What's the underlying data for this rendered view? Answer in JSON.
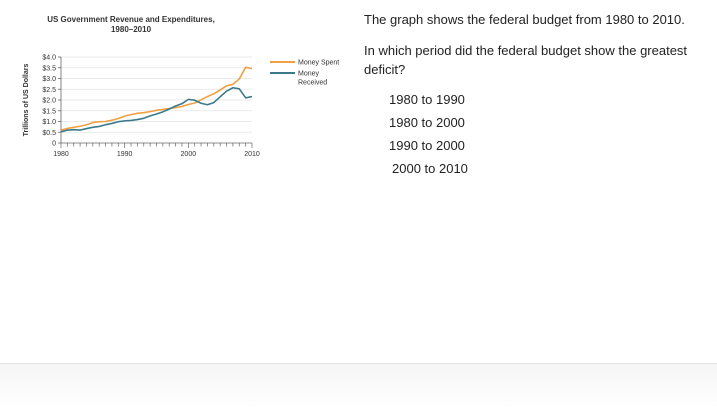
{
  "chart_data": {
    "type": "line",
    "title": "US Government Revenue and Expenditures,",
    "subtitle": "1980–2010",
    "ylabel": "Trillions of US Dollars",
    "xlabel": "",
    "xlim": [
      1980,
      2010
    ],
    "ylim": [
      0,
      4.0
    ],
    "x_ticks": [
      1980,
      1990,
      2000,
      2010
    ],
    "y_ticks": [
      "0",
      "$0.5",
      "$1.0",
      "$1.5",
      "$2.0",
      "$2.5",
      "$3.0",
      "$3.5",
      "$4.0"
    ],
    "y_tick_values": [
      0,
      0.5,
      1.0,
      1.5,
      2.0,
      2.5,
      3.0,
      3.5,
      4.0
    ],
    "grid": true,
    "legend": "right",
    "x": [
      1980,
      1981,
      1982,
      1983,
      1984,
      1985,
      1986,
      1987,
      1988,
      1989,
      1990,
      1991,
      1992,
      1993,
      1994,
      1995,
      1996,
      1997,
      1998,
      1999,
      2000,
      2001,
      2002,
      2003,
      2004,
      2005,
      2006,
      2007,
      2008,
      2009,
      2010
    ],
    "series": [
      {
        "name": "Money Spent",
        "color": "#f0a043",
        "values": [
          0.6,
          0.68,
          0.73,
          0.78,
          0.85,
          0.95,
          0.99,
          1.0,
          1.06,
          1.14,
          1.25,
          1.32,
          1.38,
          1.41,
          1.46,
          1.52,
          1.56,
          1.6,
          1.65,
          1.7,
          1.79,
          1.86,
          2.01,
          2.16,
          2.29,
          2.47,
          2.66,
          2.73,
          2.98,
          3.52,
          3.46
        ]
      },
      {
        "name": "Money Received",
        "color": "#3c7a8a",
        "values": [
          0.52,
          0.6,
          0.62,
          0.6,
          0.67,
          0.73,
          0.77,
          0.85,
          0.91,
          0.99,
          1.03,
          1.05,
          1.09,
          1.15,
          1.26,
          1.35,
          1.45,
          1.58,
          1.72,
          1.83,
          2.03,
          1.99,
          1.85,
          1.78,
          1.88,
          2.15,
          2.41,
          2.57,
          2.52,
          2.1,
          2.16
        ]
      }
    ]
  },
  "question": {
    "intro": "The graph shows the federal budget from 1980 to 2010.",
    "text": "In which period did the federal budget show the greatest deficit?",
    "options": [
      "1980 to 1990",
      "1980 to 2000",
      "1990 to 2000",
      "2000 to 2010"
    ]
  }
}
